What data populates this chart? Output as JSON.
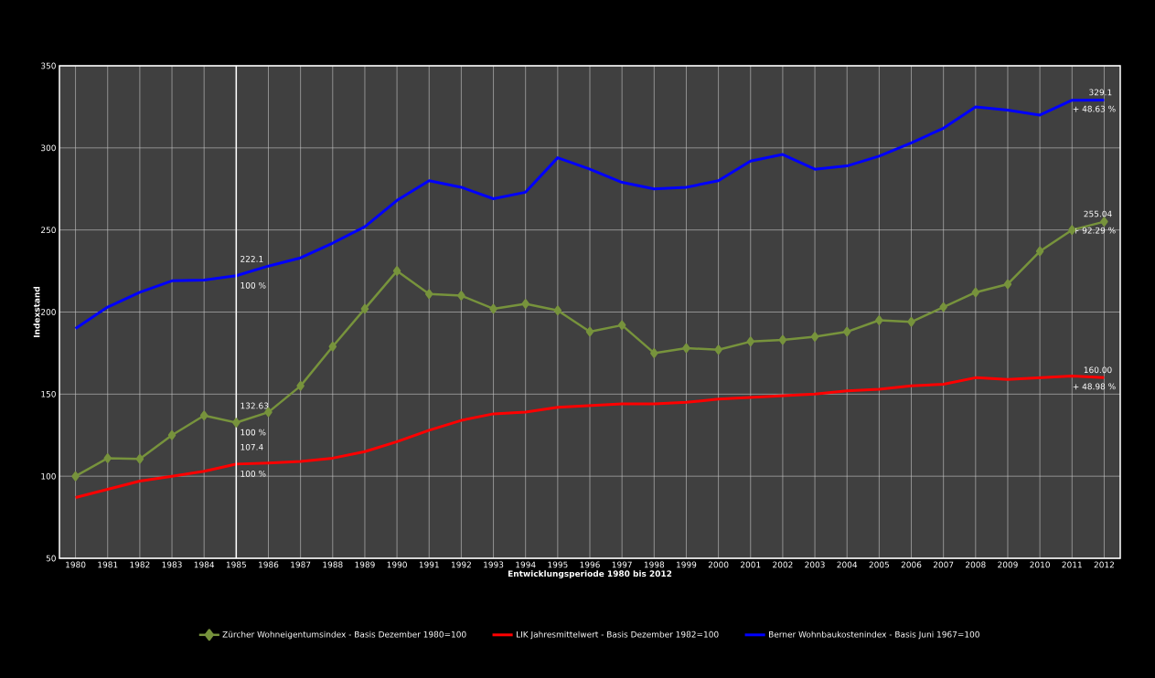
{
  "chart_data": {
    "type": "line",
    "xlabel": "Entwicklungsperiode 1980 bis 2012",
    "ylabel": "Indexstand",
    "categories": [
      "1980",
      "1981",
      "1982",
      "1983",
      "1984",
      "1985",
      "1986",
      "1987",
      "1988",
      "1989",
      "1990",
      "1991",
      "1992",
      "1993",
      "1994",
      "1995",
      "1996",
      "1997",
      "1998",
      "1999",
      "2000",
      "2001",
      "2002",
      "2003",
      "2004",
      "2005",
      "2006",
      "2007",
      "2008",
      "2009",
      "2010",
      "2011",
      "2012"
    ],
    "series": [
      {
        "name": "Zürcher Wohneigentumsindex - Basis Dezember 1980=100",
        "color": "#77933c",
        "marker": "diamond",
        "values": [
          100,
          111,
          110.5,
          125,
          137,
          132.63,
          139,
          155,
          179,
          202,
          225,
          211,
          210,
          202,
          205,
          201,
          188,
          192,
          175,
          178,
          177,
          182,
          183,
          185,
          188,
          195,
          194,
          203,
          212,
          217,
          237,
          250,
          255.04
        ]
      },
      {
        "name": "LIK Jahresmittelwert - Basis Dezember 1982=100",
        "color": "#ff0000",
        "values": [
          87,
          92,
          97,
          100,
          103,
          107.4,
          108,
          109,
          111,
          115,
          121,
          128,
          134,
          138,
          139,
          142,
          143,
          144,
          144,
          145,
          147,
          148,
          149,
          150,
          152,
          153,
          155,
          156,
          160,
          159,
          160,
          161,
          160
        ]
      },
      {
        "name": "Berner Wohnbaukostenindex - Basis Juni 1967=100",
        "color": "#0000ff",
        "values": [
          190,
          203,
          212,
          219,
          219.5,
          222.1,
          228,
          233,
          242,
          252,
          268,
          280,
          276,
          269,
          273,
          294,
          287,
          279,
          275,
          276,
          280,
          292,
          296,
          287,
          289,
          295,
          303,
          312,
          325,
          323,
          320,
          329,
          329.1
        ]
      }
    ],
    "ylim": [
      50,
      350
    ],
    "yticks": [
      50,
      100,
      150,
      200,
      250,
      300,
      350
    ],
    "grid": true,
    "legend": "bottom",
    "line_style": "solid",
    "ref_lines": [
      {
        "axis": "x",
        "value": "1985",
        "color": "#ffffff"
      }
    ],
    "annotations": [
      {
        "text": "222.1",
        "x": "1985",
        "y": 222.1
      },
      {
        "text": "100 %",
        "x": "1985",
        "y": 222.1
      },
      {
        "text": "132.63",
        "x": "1985",
        "y": 132.63
      },
      {
        "text": "100 %",
        "x": "1985",
        "y": 132.63
      },
      {
        "text": "107.4",
        "x": "1985",
        "y": 107.4
      },
      {
        "text": "100 %",
        "x": "1985",
        "y": 107.4
      },
      {
        "text": "329.1",
        "x": "2012",
        "y": 329.1
      },
      {
        "text": "+ 48.63 %",
        "x": "2012",
        "y": 329.1
      },
      {
        "text": "255.04",
        "x": "2012",
        "y": 255.04
      },
      {
        "text": "+ 92.29 %",
        "x": "2012",
        "y": 255.04
      },
      {
        "text": "160.00",
        "x": "2012",
        "y": 160
      },
      {
        "text": "+ 48.98 %",
        "x": "2012",
        "y": 160
      }
    ]
  }
}
